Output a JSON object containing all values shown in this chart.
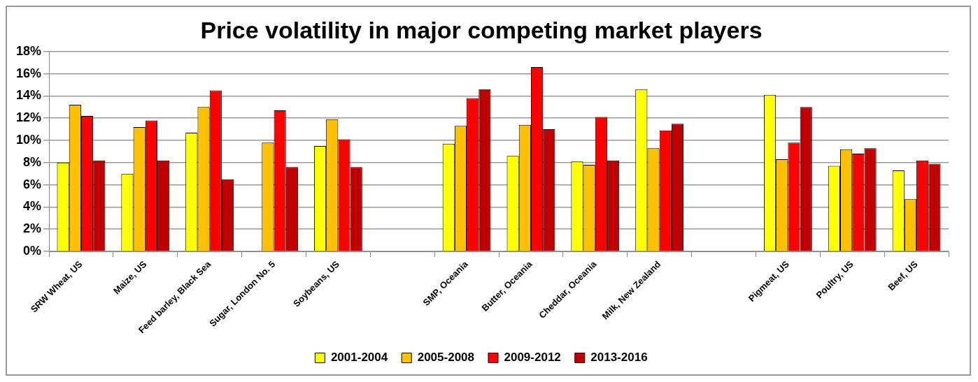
{
  "chart_data": {
    "type": "bar",
    "title": "Price volatility in major competing market players",
    "categories": [
      "SRW Wheat, US",
      "Maize, US",
      "Feed barley, Black Sea",
      "Sugar, London No. 5",
      "Soybeans, US",
      null,
      "SMP, Oceania",
      "Butter, Oceania",
      "Cheddar, Oceania",
      "Milk, New Zealand",
      null,
      "Pigmeat, US",
      "Poultry, US",
      "Beef, US"
    ],
    "series": [
      {
        "name": "2001-2004",
        "color": "#ffff00",
        "values": [
          8.0,
          7.0,
          10.7,
          null,
          9.5,
          null,
          9.7,
          8.6,
          8.1,
          14.6,
          null,
          14.1,
          7.7,
          7.3
        ]
      },
      {
        "name": "2005-2008",
        "color": "#ffc000",
        "values": [
          13.2,
          11.2,
          13.0,
          9.8,
          11.9,
          null,
          11.3,
          11.4,
          7.8,
          9.3,
          null,
          8.3,
          9.2,
          4.7
        ]
      },
      {
        "name": "2009-2012",
        "color": "#ff0000",
        "values": [
          12.2,
          11.8,
          14.5,
          12.7,
          10.1,
          null,
          13.8,
          16.6,
          12.1,
          10.9,
          null,
          9.8,
          8.8,
          8.2
        ]
      },
      {
        "name": "2013-2016",
        "color": "#c00000",
        "values": [
          8.2,
          8.2,
          6.5,
          7.6,
          7.6,
          null,
          14.6,
          11.0,
          8.2,
          11.5,
          null,
          13.0,
          9.3,
          7.9
        ]
      }
    ],
    "ylim": [
      0,
      18
    ],
    "yticks": [
      {
        "value": 0,
        "label": "0%"
      },
      {
        "value": 2,
        "label": "2%"
      },
      {
        "value": 4,
        "label": "4%"
      },
      {
        "value": 6,
        "label": "6%"
      },
      {
        "value": 8,
        "label": "8%"
      },
      {
        "value": 10,
        "label": "10%"
      },
      {
        "value": 12,
        "label": "12%"
      },
      {
        "value": 14,
        "label": "14%"
      },
      {
        "value": 16,
        "label": "16%"
      },
      {
        "value": 18,
        "label": "18%"
      }
    ],
    "grid": "y",
    "legend": "bottom"
  }
}
